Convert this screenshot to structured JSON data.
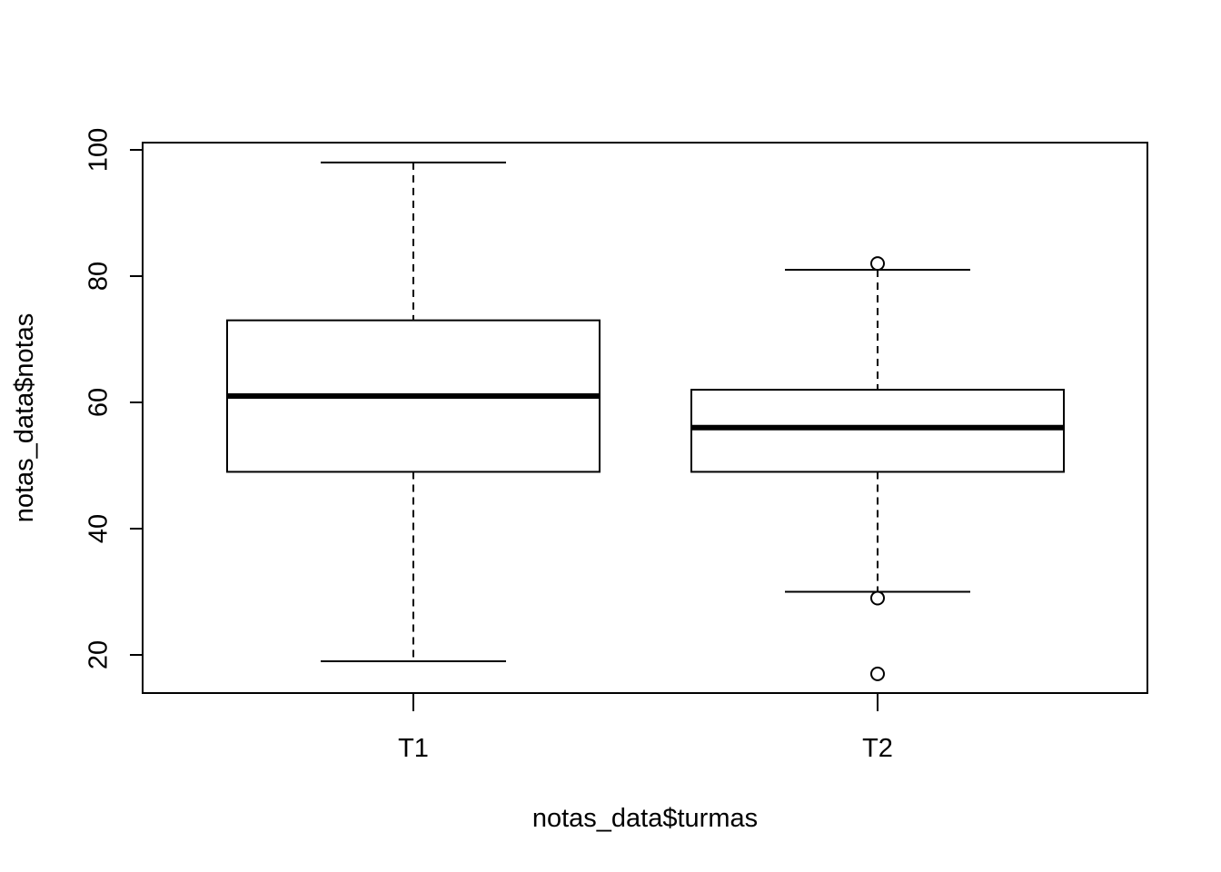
{
  "chart_data": {
    "type": "boxplot",
    "title": "",
    "xlabel": "notas_data$turmas",
    "ylabel": "notas_data$notas",
    "categories": [
      "T1",
      "T2"
    ],
    "ylim": [
      14,
      101
    ],
    "yticks": [
      20,
      40,
      60,
      80,
      100
    ],
    "grid": false,
    "boxes": [
      {
        "category": "T1",
        "whisker_low": 19,
        "q1": 49,
        "median": 61,
        "q3": 73,
        "whisker_high": 98,
        "outliers": []
      },
      {
        "category": "T2",
        "whisker_low": 30,
        "q1": 49,
        "median": 56,
        "q3": 62,
        "whisker_high": 81,
        "outliers": [
          82,
          29,
          17
        ]
      }
    ]
  }
}
